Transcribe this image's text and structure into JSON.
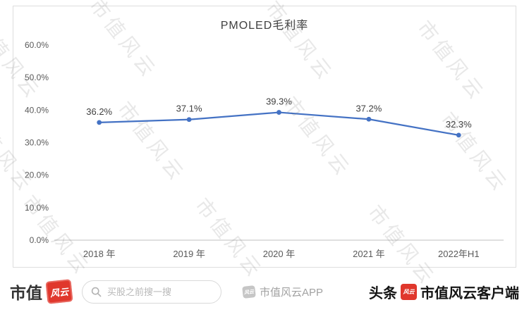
{
  "watermark": {
    "text": "市值风云"
  },
  "chart_data": {
    "type": "line",
    "title": "PMOLED毛利率",
    "categories": [
      "2018 年",
      "2019 年",
      "2020 年",
      "2021 年",
      "2022年H1"
    ],
    "series": [
      {
        "name": "PMOLED毛利率",
        "values": [
          36.2,
          37.1,
          39.3,
          37.2,
          32.3
        ]
      }
    ],
    "data_labels": [
      "36.2%",
      "37.1%",
      "39.3%",
      "37.2%",
      "32.3%"
    ],
    "ylabel": "",
    "xlabel": "",
    "ylim": [
      0,
      60
    ],
    "ytick_step": 10,
    "ytick_labels": [
      "0.0%",
      "10.0%",
      "20.0%",
      "30.0%",
      "40.0%",
      "50.0%",
      "60.0%"
    ],
    "line_color": "#4472C4",
    "axis_color": "#bfbfbf",
    "grid": false,
    "legend": "none"
  },
  "footer": {
    "brand": "市值",
    "stamp": "风云",
    "search_placeholder": "买股之前搜一搜",
    "app_label": "市值风云APP",
    "app_logo": "风云",
    "toutiao": "头条",
    "client_logo": "风云",
    "client_label": "市值风云客户端"
  }
}
